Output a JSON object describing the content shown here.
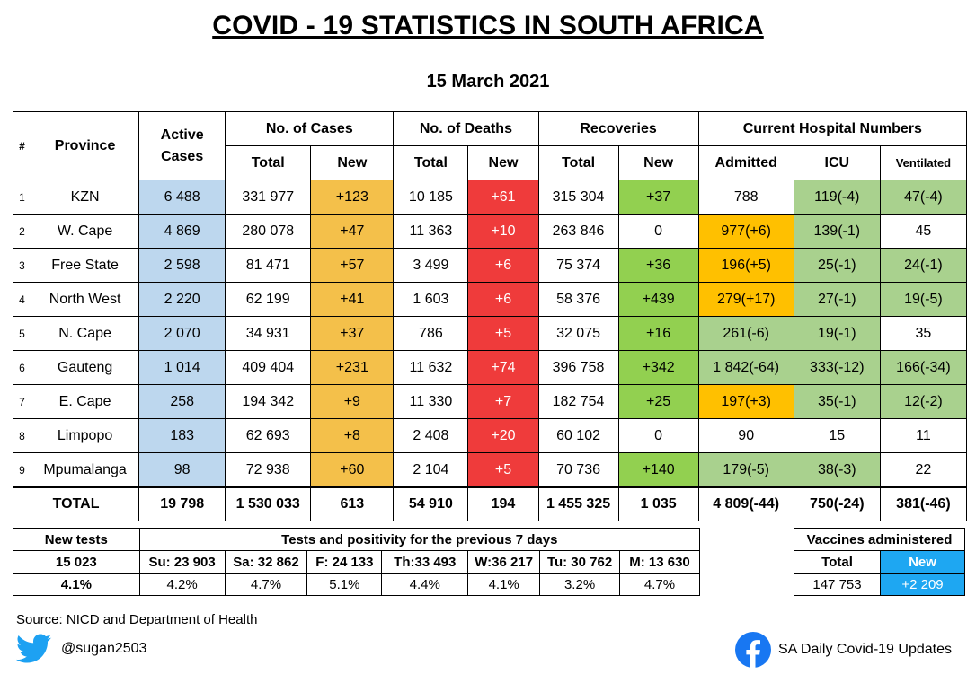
{
  "title": "COVID - 19 STATISTICS IN SOUTH AFRICA",
  "date": "15 March 2021",
  "headers": {
    "hash": "#",
    "province": "Province",
    "active_cases": "Active Cases",
    "no_of_cases": "No. of Cases",
    "no_of_deaths": "No. of Deaths",
    "recoveries": "Recoveries",
    "hospital": "Current Hospital Numbers",
    "total": "Total",
    "new": "New",
    "admitted": "Admitted",
    "icu": "ICU",
    "ventilated": "Ventilated"
  },
  "rows": [
    {
      "n": "1",
      "province": "KZN",
      "active": "6 488",
      "cases_total": "331 977",
      "cases_new": "+123",
      "deaths_total": "10 185",
      "deaths_new": "+61",
      "rec_total": "315 304",
      "rec_new": "+37",
      "admitted": "788",
      "icu": "119(-4)",
      "vent": "47(-4)"
    },
    {
      "n": "2",
      "province": "W. Cape",
      "active": "4 869",
      "cases_total": "280 078",
      "cases_new": "+47",
      "deaths_total": "11 363",
      "deaths_new": "+10",
      "rec_total": "263 846",
      "rec_new": "0",
      "admitted": "977(+6)",
      "icu": "139(-1)",
      "vent": "45"
    },
    {
      "n": "3",
      "province": "Free State",
      "active": "2 598",
      "cases_total": "81 471",
      "cases_new": "+57",
      "deaths_total": "3 499",
      "deaths_new": "+6",
      "rec_total": "75 374",
      "rec_new": "+36",
      "admitted": "196(+5)",
      "icu": "25(-1)",
      "vent": "24(-1)"
    },
    {
      "n": "4",
      "province": "North West",
      "active": "2 220",
      "cases_total": "62 199",
      "cases_new": "+41",
      "deaths_total": "1 603",
      "deaths_new": "+6",
      "rec_total": "58 376",
      "rec_new": "+439",
      "admitted": "279(+17)",
      "icu": "27(-1)",
      "vent": "19(-5)"
    },
    {
      "n": "5",
      "province": "N. Cape",
      "active": "2 070",
      "cases_total": "34 931",
      "cases_new": "+37",
      "deaths_total": "786",
      "deaths_new": "+5",
      "rec_total": "32 075",
      "rec_new": "+16",
      "admitted": "261(-6)",
      "icu": "19(-1)",
      "vent": "35"
    },
    {
      "n": "6",
      "province": "Gauteng",
      "active": "1 014",
      "cases_total": "409 404",
      "cases_new": "+231",
      "deaths_total": "11 632",
      "deaths_new": "+74",
      "rec_total": "396 758",
      "rec_new": "+342",
      "admitted": "1 842(-64)",
      "icu": "333(-12)",
      "vent": "166(-34)"
    },
    {
      "n": "7",
      "province": "E. Cape",
      "active": "258",
      "cases_total": "194 342",
      "cases_new": "+9",
      "deaths_total": "11 330",
      "deaths_new": "+7",
      "rec_total": "182 754",
      "rec_new": "+25",
      "admitted": "197(+3)",
      "icu": "35(-1)",
      "vent": "12(-2)"
    },
    {
      "n": "8",
      "province": "Limpopo",
      "active": "183",
      "cases_total": "62 693",
      "cases_new": "+8",
      "deaths_total": "2 408",
      "deaths_new": "+20",
      "rec_total": "60 102",
      "rec_new": "0",
      "admitted": "90",
      "icu": "15",
      "vent": "11"
    },
    {
      "n": "9",
      "province": "Mpumalanga",
      "active": "98",
      "cases_total": "72 938",
      "cases_new": "+60",
      "deaths_total": "2 104",
      "deaths_new": "+5",
      "rec_total": "70 736",
      "rec_new": "+140",
      "admitted": "179(-5)",
      "icu": "38(-3)",
      "vent": "22"
    }
  ],
  "totals": {
    "label": "TOTAL",
    "active": "19 798",
    "cases_total": "1 530 033",
    "cases_new": "613",
    "deaths_total": "54 910",
    "deaths_new": "194",
    "rec_total": "1 455 325",
    "rec_new": "1 035",
    "admitted": "4 809(-44)",
    "icu": "750(-24)",
    "vent": "381(-46)"
  },
  "tests": {
    "new_tests_label": "New tests",
    "prev7_label": "Tests and positivity for the previous 7 days",
    "new_tests_value": "15 023",
    "new_tests_pct": "4.1%",
    "days": [
      {
        "label": "Su: 23 903",
        "pct": "4.2%"
      },
      {
        "label": "Sa: 32 862",
        "pct": "4.7%"
      },
      {
        "label": "F: 24 133",
        "pct": "5.1%"
      },
      {
        "label": "Th:33 493",
        "pct": "4.4%"
      },
      {
        "label": "W:36 217",
        "pct": "4.1%"
      },
      {
        "label": "Tu: 30 762",
        "pct": "3.2%"
      },
      {
        "label": "M: 13 630",
        "pct": "4.7%"
      }
    ]
  },
  "vaccines": {
    "label": "Vaccines administered",
    "total_label": "Total",
    "new_label": "New",
    "total": "147 753",
    "new": "+2 209"
  },
  "footer": {
    "source": "Source: NICD and Department of Health",
    "twitter": "@sugan2503",
    "facebook": "SA Daily Covid-19 Updates"
  },
  "colors": {
    "blue": "#bdd7ee",
    "orange": "#f4c04a",
    "red": "#ef3b3b",
    "green": "#92d050",
    "amber": "#ffc000",
    "light_green": "#a9d18e",
    "vaccine_blue": "#1ea7f2"
  }
}
